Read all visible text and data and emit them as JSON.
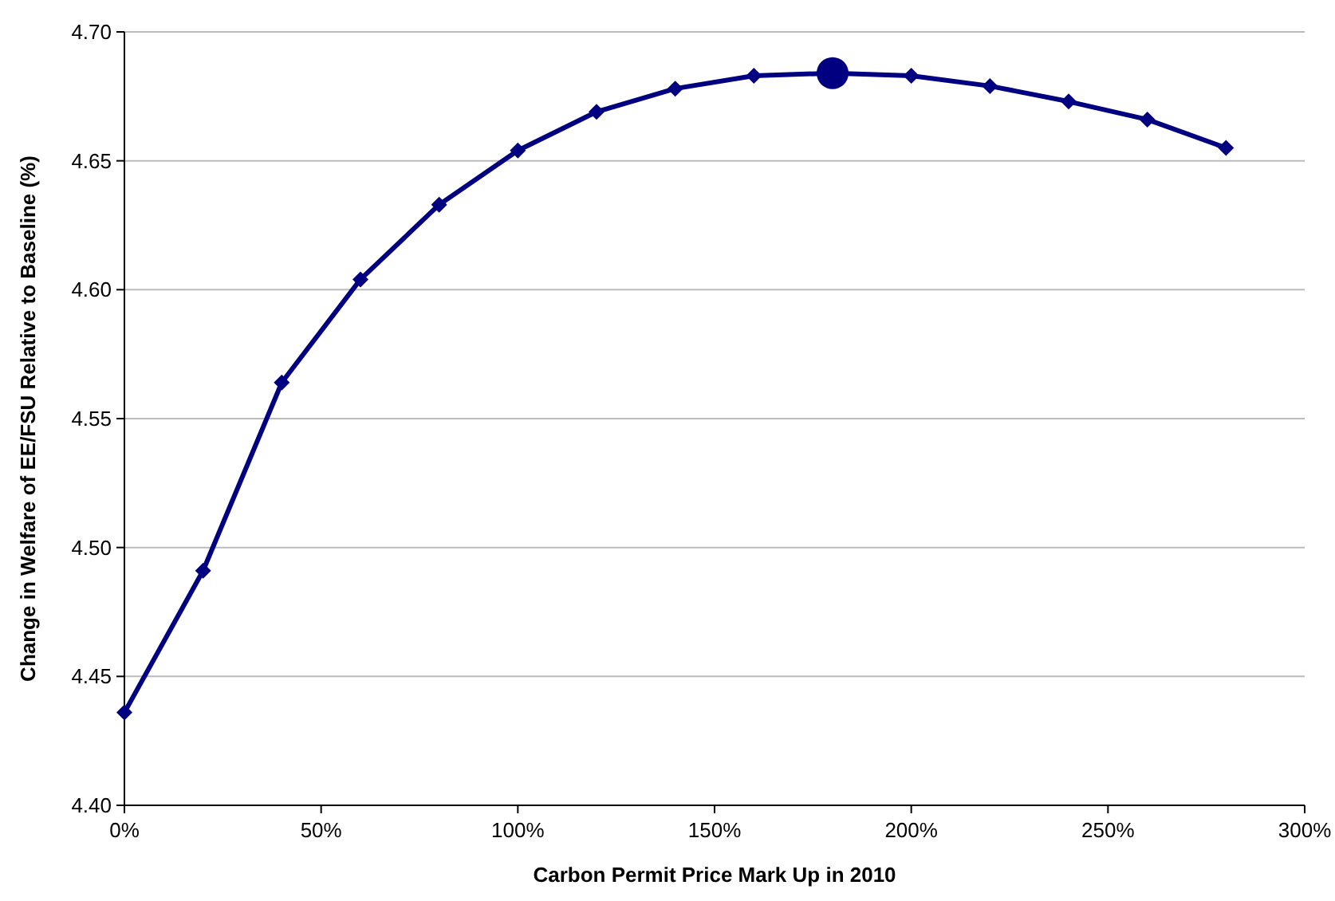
{
  "chart_data": {
    "type": "line",
    "xlabel": "Carbon Permit Price Mark Up in 2010",
    "ylabel": "Change in Welfare of EE/FSU Relative to Baseline (%)",
    "xlim": [
      0,
      300
    ],
    "xticks": [
      {
        "value": 0,
        "label": "0%"
      },
      {
        "value": 50,
        "label": "50%"
      },
      {
        "value": 100,
        "label": "100%"
      },
      {
        "value": 150,
        "label": "150%"
      },
      {
        "value": 200,
        "label": "200%"
      },
      {
        "value": 250,
        "label": "250%"
      },
      {
        "value": 300,
        "label": "300%"
      }
    ],
    "ylim": [
      4.4,
      4.7
    ],
    "yticks": [
      {
        "value": 4.4,
        "label": "4.40"
      },
      {
        "value": 4.45,
        "label": "4.45"
      },
      {
        "value": 4.5,
        "label": "4.50"
      },
      {
        "value": 4.55,
        "label": "4.55"
      },
      {
        "value": 4.6,
        "label": "4.60"
      },
      {
        "value": 4.65,
        "label": "4.65"
      },
      {
        "value": 4.7,
        "label": "4.70"
      }
    ],
    "grid": "y",
    "series": [
      {
        "color": "#000080",
        "marker": "diamond",
        "x": [
          0,
          20,
          40,
          60,
          80,
          100,
          120,
          140,
          160,
          180,
          200,
          220,
          240,
          260,
          280
        ],
        "values": [
          4.436,
          4.491,
          4.564,
          4.604,
          4.633,
          4.654,
          4.669,
          4.678,
          4.683,
          4.684,
          4.683,
          4.679,
          4.673,
          4.666,
          4.655
        ]
      },
      {
        "type": "scatter",
        "color": "#000080",
        "marker": "circle",
        "x": [
          180
        ],
        "values": [
          4.684
        ]
      }
    ]
  }
}
